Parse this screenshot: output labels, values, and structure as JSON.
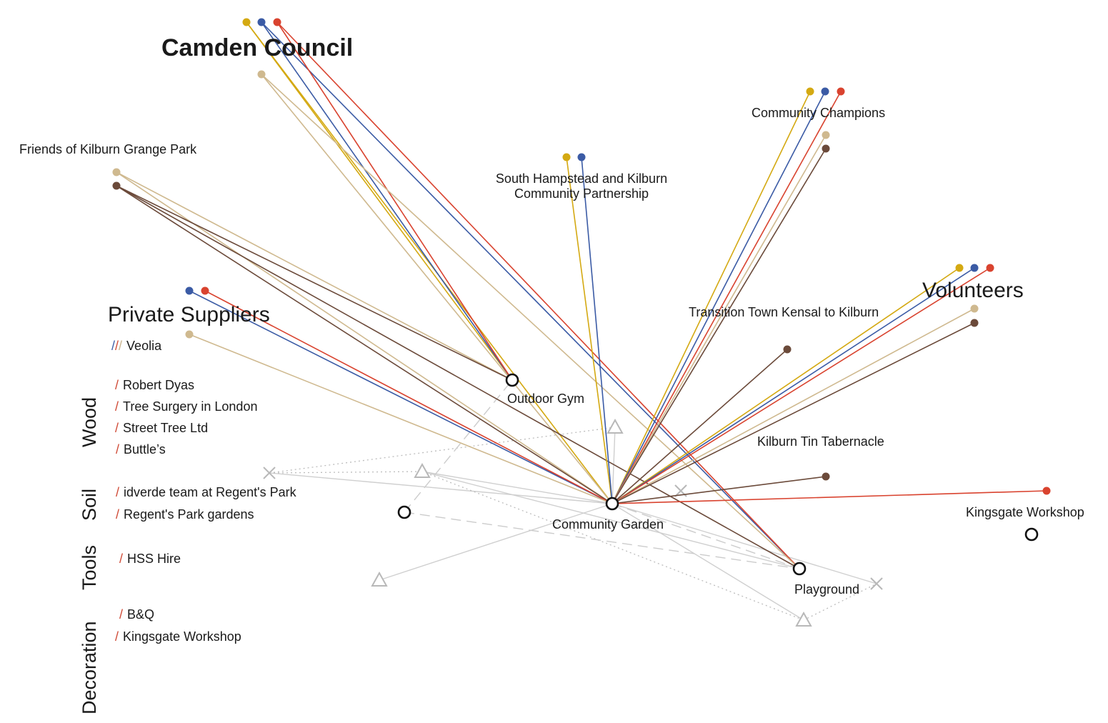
{
  "colors": {
    "yellow": "#d4a912",
    "blue": "#3b5ba5",
    "red": "#d9432f",
    "tan": "#cfb98f",
    "brown": "#6b4a3a",
    "grey": "#c8c8c8",
    "node": "#111111"
  },
  "headings": {
    "camden": "Camden Council",
    "volunteers": "Volunteers",
    "private": "Private Suppliers"
  },
  "stakeholders": {
    "friends": "Friends of Kilburn Grange Park",
    "shkcp_line1": "South Hampstead and Kilburn",
    "shkcp_line2": "Community Partnership",
    "champions": "Community Champions",
    "transition": "Transition Town Kensal to Kilburn",
    "tin": "Kilburn Tin Tabernacle",
    "kingsgate": "Kingsgate Workshop"
  },
  "places": {
    "gym": "Outdoor Gym",
    "garden": "Community Garden",
    "playground": "Playground"
  },
  "suppliers": {
    "veolia": "Veolia",
    "categories": {
      "wood": "Wood",
      "soil": "Soil",
      "tools": "Tools",
      "decoration": "Decoration"
    },
    "wood": [
      "Robert Dyas",
      "Tree Surgery in London",
      "Street Tree Ltd",
      "Buttle’s"
    ],
    "soil": [
      "idverde team at Regent's Park",
      "Regent's Park gardens"
    ],
    "tools": [
      "HSS Hire"
    ],
    "decoration": [
      "B&Q",
      "Kingsgate Workshop"
    ]
  },
  "slash_glyph": "/"
}
